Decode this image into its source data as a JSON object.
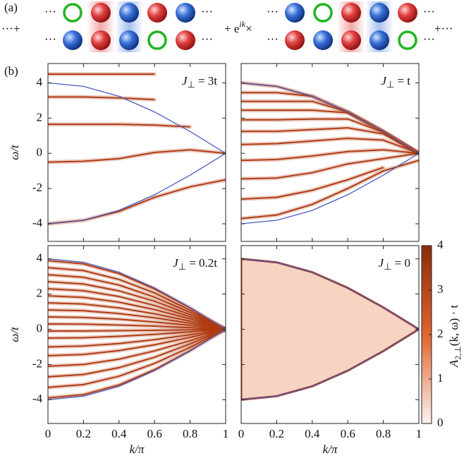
{
  "panel_a": {
    "label": "(a)",
    "lead": "···+",
    "dots": "···",
    "phase": [
      "+ e",
      "ik",
      "×"
    ],
    "trail": "+···"
  },
  "panel_b_label": "(b)",
  "chart_data": [
    {
      "type": "spectrum",
      "annotation": [
        "J",
        "⊥",
        " = 3t"
      ],
      "ylabel": "ω/t",
      "x": [
        0,
        0.2,
        0.4,
        0.6,
        0.8,
        1
      ],
      "xlim": [
        0,
        1
      ],
      "xticks": [
        0,
        0.2,
        0.4,
        0.6,
        0.8,
        1
      ],
      "ylim": [
        -5,
        5.1
      ],
      "yticks": [
        -4,
        -2,
        0,
        2,
        4
      ],
      "band_color": "#b03c14",
      "boundary_color": "#4a5cc0",
      "boundary": {
        "upper": [
          4,
          3.8,
          3.24,
          2.35,
          1.24,
          0
        ],
        "lower": [
          -4,
          -3.8,
          -3.24,
          -2.35,
          -1.24,
          0
        ]
      },
      "series": [
        {
          "values": [
            4.5,
            4.5,
            4.5,
            4.5,
            null,
            null
          ]
        },
        {
          "values": [
            3.2,
            3.2,
            3.15,
            3.05,
            null,
            null
          ]
        },
        {
          "values": [
            1.65,
            1.65,
            1.65,
            1.6,
            1.5,
            null
          ]
        },
        {
          "values": [
            -0.5,
            -0.45,
            -0.3,
            0.05,
            0.2,
            0
          ]
        },
        {
          "values": [
            -4,
            -3.8,
            -3.3,
            -2.5,
            -1.9,
            -1.5
          ]
        }
      ]
    },
    {
      "type": "spectrum",
      "annotation": [
        "J",
        "⊥",
        " = t"
      ],
      "x": [
        0,
        0.2,
        0.4,
        0.6,
        0.8,
        1
      ],
      "xlim": [
        0,
        1
      ],
      "xticks": [
        0,
        0.2,
        0.4,
        0.6,
        0.8,
        1
      ],
      "ylim": [
        -5,
        5.1
      ],
      "yticks": [
        -4,
        -2,
        0,
        2,
        4
      ],
      "band_color": "#b03c14",
      "boundary_color": "#4a5cc0",
      "boundary": {
        "upper": [
          4,
          3.8,
          3.24,
          2.35,
          1.24,
          0
        ],
        "lower": [
          -4,
          -3.8,
          -3.24,
          -2.35,
          -1.24,
          0
        ]
      },
      "series": [
        {
          "values": [
            4,
            3.8,
            3.24,
            2.35,
            1.24,
            0
          ]
        },
        {
          "values": [
            3.45,
            3.45,
            3.24,
            2.35,
            1.24,
            0
          ]
        },
        {
          "values": [
            2.95,
            2.95,
            2.95,
            2.35,
            1.24,
            0
          ]
        },
        {
          "values": [
            2.45,
            2.45,
            2.45,
            2.3,
            1.24,
            0
          ]
        },
        {
          "values": [
            1.9,
            1.9,
            1.95,
            1.95,
            1.2,
            0
          ]
        },
        {
          "values": [
            1.25,
            1.25,
            1.35,
            1.45,
            1.1,
            0
          ]
        },
        {
          "values": [
            0.5,
            0.55,
            0.7,
            0.85,
            0.75,
            0
          ]
        },
        {
          "values": [
            -0.4,
            -0.35,
            -0.15,
            0.1,
            0.2,
            0
          ]
        },
        {
          "values": [
            -1.45,
            -1.4,
            -1.1,
            -0.6,
            -0.3,
            0
          ]
        },
        {
          "values": [
            -2.6,
            -2.5,
            -2.1,
            -1.5,
            -0.8,
            null
          ]
        },
        {
          "values": [
            -3.7,
            -3.5,
            -2.9,
            -2,
            -1,
            -0.4
          ]
        }
      ]
    },
    {
      "type": "spectrum",
      "annotation": [
        "J",
        "⊥",
        " = 0.2t"
      ],
      "ylabel": "ω/t",
      "xlabel": "k/π",
      "x": [
        0,
        0.2,
        0.4,
        0.6,
        0.8,
        1
      ],
      "xlim": [
        0,
        1
      ],
      "xticks": [
        0,
        0.2,
        0.4,
        0.6,
        0.8,
        1
      ],
      "ylim": [
        -5.35,
        4.75
      ],
      "yticks": [
        -4,
        -2,
        0,
        2,
        4
      ],
      "band_color": "#b03c14",
      "boundary_color": "#4a5cc0",
      "boundary": {
        "upper": [
          4,
          3.8,
          3.24,
          2.35,
          1.24,
          0
        ],
        "lower": [
          -4,
          -3.8,
          -3.24,
          -2.35,
          -1.24,
          0
        ]
      },
      "series": [
        {
          "values": [
            3.9,
            3.71,
            3.16,
            2.29,
            1.21,
            0
          ]
        },
        {
          "values": [
            3.5,
            3.33,
            2.83,
            2.06,
            1.08,
            0
          ]
        },
        {
          "values": [
            3.1,
            2.95,
            2.51,
            1.82,
            0.96,
            0
          ]
        },
        {
          "values": [
            2.7,
            2.57,
            2.18,
            1.59,
            0.83,
            0
          ]
        },
        {
          "values": [
            2.3,
            2.19,
            1.86,
            1.35,
            0.71,
            0
          ]
        },
        {
          "values": [
            1.9,
            1.81,
            1.54,
            1.12,
            0.59,
            0
          ]
        },
        {
          "values": [
            1.5,
            1.43,
            1.21,
            0.88,
            0.46,
            0
          ]
        },
        {
          "values": [
            1.1,
            1.05,
            0.89,
            0.65,
            0.34,
            0
          ]
        },
        {
          "values": [
            0.7,
            0.67,
            0.57,
            0.41,
            0.22,
            0
          ]
        },
        {
          "values": [
            0.3,
            0.29,
            0.24,
            0.18,
            0.09,
            0
          ]
        },
        {
          "values": [
            -0.1,
            -0.1,
            -0.08,
            -0.06,
            -0.03,
            0
          ]
        },
        {
          "values": [
            -0.5,
            -0.48,
            -0.4,
            -0.29,
            -0.15,
            0
          ]
        },
        {
          "values": [
            -1,
            -0.95,
            -0.81,
            -0.59,
            -0.31,
            0
          ]
        },
        {
          "values": [
            -1.5,
            -1.43,
            -1.21,
            -0.88,
            -0.46,
            0
          ]
        },
        {
          "values": [
            -2.1,
            -2,
            -1.7,
            -1.23,
            -0.65,
            0
          ]
        },
        {
          "values": [
            -2.7,
            -2.57,
            -2.18,
            -1.59,
            -0.83,
            0
          ]
        },
        {
          "values": [
            -3.3,
            -3.14,
            -2.67,
            -1.94,
            -1.02,
            0
          ]
        },
        {
          "values": [
            -3.9,
            -3.71,
            -3.16,
            -2.29,
            -1.21,
            0
          ]
        }
      ]
    },
    {
      "type": "continuum",
      "annotation": [
        "J",
        "⊥",
        " = 0"
      ],
      "xlabel": "k/π",
      "x": [
        0,
        0.2,
        0.4,
        0.6,
        0.8,
        1
      ],
      "xlim": [
        0,
        1
      ],
      "xticks": [
        0,
        0.2,
        0.4,
        0.6,
        0.8,
        1
      ],
      "ylim": [
        -5.35,
        4.75
      ],
      "yticks": [
        -4,
        -2,
        0,
        2,
        4
      ],
      "fill_color": "#f7d3c2",
      "band_color": "#b03c14",
      "boundary_color": "#4a5cc0",
      "boundary": {
        "upper": [
          4,
          3.8,
          3.24,
          2.35,
          1.24,
          0
        ],
        "lower": [
          -4,
          -3.8,
          -3.24,
          -2.35,
          -1.24,
          0
        ]
      }
    }
  ],
  "colorbar": {
    "label": [
      "A",
      "2,⊥",
      "(k, ω) · t"
    ],
    "lim": [
      0,
      4
    ],
    "ticks": [
      0,
      1,
      2,
      3,
      4
    ],
    "colors": [
      "#fdf4ee",
      "#e0642e",
      "#8a2c0a"
    ]
  }
}
